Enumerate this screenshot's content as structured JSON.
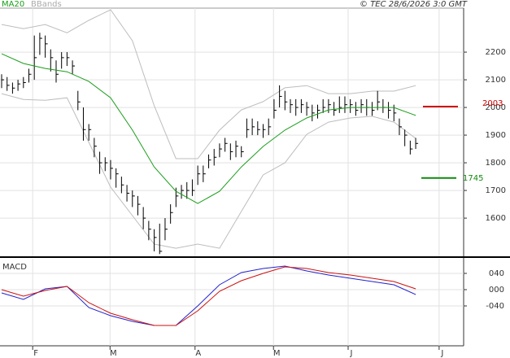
{
  "source": "© TEC 28/6/2026 3:0 GMT",
  "chart_data": [
    {
      "type": "ohlc",
      "xlim": [
        -0.3,
        84.8
      ],
      "ylim": [
        1462,
        2359
      ],
      "yticks": [
        1600,
        1700,
        1800,
        1900,
        2000,
        2100,
        2200
      ],
      "grid": true,
      "bar_color": "#000",
      "bars": {
        "high": [
          2120,
          2110,
          2090,
          2100,
          2110,
          2140,
          2260,
          2270,
          2260,
          2210,
          2170,
          2200,
          2200,
          2170,
          2060,
          2000,
          1940,
          1890,
          1840,
          1820,
          1810,
          1780,
          1750,
          1720,
          1700,
          1680,
          1640,
          1590,
          1560,
          1580,
          1600,
          1650,
          1710,
          1720,
          1730,
          1740,
          1790,
          1790,
          1830,
          1850,
          1870,
          1890,
          1870,
          1880,
          1860,
          1960,
          1960,
          1950,
          1940,
          1960,
          2030,
          2080,
          2060,
          2030,
          2030,
          2030,
          2020,
          2010,
          2010,
          2030,
          2030,
          2020,
          2040,
          2040,
          2030,
          2020,
          2030,
          2030,
          2020,
          2060,
          2030,
          2020,
          2010,
          1960,
          1920,
          1880,
          1890
        ],
        "low": [
          2070,
          2060,
          2050,
          2060,
          2070,
          2090,
          2100,
          2190,
          2180,
          2130,
          2090,
          2140,
          2150,
          2120,
          1990,
          1880,
          1880,
          1820,
          1760,
          1770,
          1740,
          1710,
          1690,
          1660,
          1640,
          1610,
          1560,
          1520,
          1480,
          1470,
          1520,
          1580,
          1640,
          1670,
          1670,
          1680,
          1720,
          1730,
          1780,
          1790,
          1820,
          1840,
          1810,
          1820,
          1820,
          1890,
          1900,
          1900,
          1890,
          1900,
          1960,
          2000,
          1990,
          1980,
          1970,
          1980,
          1970,
          1950,
          1960,
          1980,
          1980,
          1970,
          1980,
          1980,
          1980,
          1970,
          1980,
          1970,
          1970,
          1990,
          1980,
          1960,
          1950,
          1900,
          1860,
          1830,
          1850
        ],
        "close": [
          2100,
          2080,
          2070,
          2085,
          2090,
          2120,
          2180,
          2250,
          2230,
          2180,
          2120,
          2180,
          2180,
          2150,
          2020,
          1920,
          1920,
          1860,
          1800,
          1800,
          1780,
          1760,
          1720,
          1690,
          1680,
          1650,
          1600,
          1560,
          1530,
          1480,
          1560,
          1620,
          1680,
          1700,
          1700,
          1700,
          1760,
          1760,
          1810,
          1820,
          1850,
          1870,
          1840,
          1860,
          1840,
          1920,
          1930,
          1920,
          1920,
          1930,
          1990,
          2040,
          2020,
          2010,
          2000,
          2010,
          2000,
          1980,
          1990,
          2000,
          2010,
          1990,
          2000,
          2010,
          2010,
          1990,
          2010,
          2000,
          1990,
          2020,
          2000,
          1990,
          1980,
          1930,
          1900,
          1850,
          1870
        ]
      },
      "ma": {
        "name": "MA20",
        "color": "#1a9e1a",
        "x": [
          0,
          4,
          8,
          12,
          16,
          20,
          24,
          28,
          32,
          36,
          40,
          44,
          48,
          52,
          56,
          60,
          64,
          68,
          72,
          76
        ],
        "values": [
          2194,
          2159,
          2141,
          2129,
          2094,
          2035,
          1918,
          1785,
          1697,
          1653,
          1697,
          1785,
          1859,
          1918,
          1962,
          1991,
          2000,
          2000,
          2000,
          1971
        ]
      },
      "bands": {
        "name": "BBands",
        "color": "#bdbdbd",
        "x": [
          0,
          4,
          8,
          12,
          16,
          20,
          24,
          28,
          32,
          36,
          40,
          44,
          48,
          52,
          56,
          60,
          64,
          68,
          72,
          76
        ],
        "upper": [
          2300,
          2285,
          2300,
          2270,
          2315,
          2353,
          2241,
          2006,
          1815,
          1815,
          1918,
          1991,
          2021,
          2071,
          2079,
          2050,
          2050,
          2059,
          2059,
          2079
        ],
        "lower": [
          2050,
          2029,
          2026,
          2035,
          1874,
          1712,
          1609,
          1506,
          1491,
          1506,
          1491,
          1624,
          1756,
          1800,
          1903,
          1947,
          1962,
          1968,
          1947,
          1888
        ]
      },
      "levels": [
        {
          "value": 2003,
          "color": "#cc0000"
        },
        {
          "value": 1745,
          "color": "#118811"
        }
      ]
    },
    {
      "type": "macd",
      "title": "MACD",
      "xlim": [
        -0.3,
        84.8
      ],
      "ylim": [
        -138,
        76
      ],
      "yticks": [
        {
          "value": 40,
          "label": "040"
        },
        {
          "value": 0,
          "label": "000"
        },
        {
          "value": -40,
          "label": "-040"
        }
      ],
      "xticks": [
        {
          "value": 5.7,
          "label": "F"
        },
        {
          "value": 19.9,
          "label": "M"
        },
        {
          "value": 35.5,
          "label": "A"
        },
        {
          "value": 49.9,
          "label": "M"
        },
        {
          "value": 63.6,
          "label": "J"
        },
        {
          "value": 80.3,
          "label": "J"
        }
      ],
      "grid": true,
      "series": [
        {
          "color": "#2222cc",
          "x": [
            0,
            4,
            8,
            12,
            16,
            20,
            24,
            28,
            32,
            36,
            40,
            44,
            48,
            52,
            56,
            60,
            64,
            68,
            72,
            76
          ],
          "values": [
            -8,
            -24,
            2,
            8,
            -44,
            -64,
            -78,
            -88,
            -88,
            -40,
            12,
            42,
            52,
            58,
            46,
            36,
            28,
            20,
            12,
            -12
          ]
        },
        {
          "color": "#cc1111",
          "x": [
            0,
            4,
            8,
            12,
            16,
            20,
            24,
            28,
            32,
            36,
            40,
            44,
            48,
            52,
            56,
            60,
            64,
            68,
            72,
            76
          ],
          "values": [
            0,
            -16,
            -2,
            8,
            -32,
            -58,
            -74,
            -88,
            -88,
            -52,
            -4,
            22,
            40,
            56,
            52,
            42,
            36,
            28,
            20,
            2
          ]
        }
      ]
    }
  ]
}
